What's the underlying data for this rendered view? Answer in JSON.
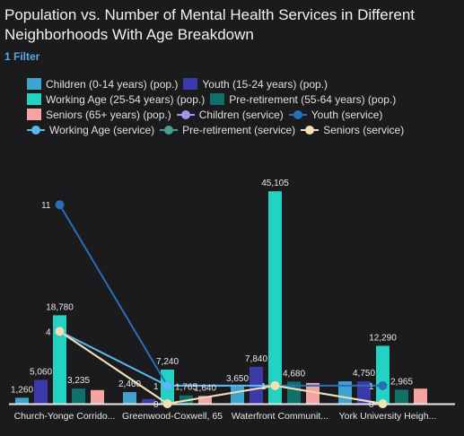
{
  "title": "Population vs. Number of Mental Health Services in Different Neighborhoods With Age Breakdown",
  "filter_label": "1 Filter",
  "legend": [
    [
      {
        "name": "Children (0-14 years) (pop.)",
        "kind": "bar",
        "color": "#3fa3cf"
      },
      {
        "name": "Youth (15-24 years) (pop.)",
        "kind": "bar",
        "color": "#3a3aa8"
      }
    ],
    [
      {
        "name": "Working Age (25-54 years) (pop.)",
        "kind": "bar",
        "color": "#22d3c4"
      },
      {
        "name": "Pre-retirement (55-64 years) (pop.)",
        "kind": "bar",
        "color": "#0e7068"
      }
    ],
    [
      {
        "name": "Seniors (65+ years) (pop.)",
        "kind": "bar",
        "color": "#f5a3a3"
      },
      {
        "name": "Children (service)",
        "kind": "line",
        "color": "#9999ee"
      },
      {
        "name": "Youth (service)",
        "kind": "line",
        "color": "#2a6db8"
      }
    ],
    [
      {
        "name": "Working Age (service)",
        "kind": "line",
        "color": "#5bb8f0"
      },
      {
        "name": "Pre-retirement (service)",
        "kind": "line",
        "color": "#4a9e90"
      },
      {
        "name": "Seniors (service)",
        "kind": "line",
        "color": "#f5deb0"
      }
    ]
  ],
  "chart_data": {
    "type": "bar",
    "categories": [
      "Church-Yonge Corrido...",
      "Greenwood-Coxwell, 65",
      "Waterfront Communit...",
      "York University Heigh..."
    ],
    "ylim": [
      0,
      48000
    ],
    "series": [
      {
        "name": "Children (0-14 years) (pop.)",
        "color": "#3fa3cf",
        "values": [
          1260,
          2460,
          3650,
          4750
        ],
        "labels": [
          "1,260",
          "2,460",
          "3,650",
          ""
        ]
      },
      {
        "name": "Youth (15-24 years) (pop.)",
        "color": "#3a3aa8",
        "values": [
          5060,
          1000,
          7840,
          4750
        ],
        "labels": [
          "5,060",
          "",
          "7,840",
          "4,750"
        ]
      },
      {
        "name": "Working Age (25-54 years) (pop.)",
        "color": "#22d3c4",
        "values": [
          18780,
          7240,
          45105,
          12290
        ],
        "labels": [
          "18,780",
          "7,240",
          "45,105",
          "12,290"
        ]
      },
      {
        "name": "Pre-retirement (55-64 years) (pop.)",
        "color": "#0e7068",
        "values": [
          3235,
          1765,
          4680,
          2965
        ],
        "labels": [
          "3,235",
          "1,765",
          "4,680",
          "2,965"
        ]
      },
      {
        "name": "Seniors (65+ years) (pop.)",
        "color": "#f5a3a3",
        "values": [
          2900,
          1640,
          4400,
          3200
        ],
        "labels": [
          "",
          "1,640",
          "",
          ""
        ]
      }
    ],
    "service_ylim": [
      0,
      12.5
    ],
    "service_series": [
      {
        "name": "Children (service)",
        "color": "#9999ee",
        "values": [
          4,
          0,
          1,
          0
        ],
        "labels": [
          "",
          "",
          "",
          ""
        ]
      },
      {
        "name": "Youth (service)",
        "color": "#2a6db8",
        "values": [
          11,
          1,
          1,
          1
        ],
        "labels": [
          "11",
          "",
          "",
          "1"
        ]
      },
      {
        "name": "Working Age (service)",
        "color": "#5bb8f0",
        "values": [
          4,
          1,
          1,
          0
        ],
        "labels": [
          "",
          "1",
          "",
          ""
        ]
      },
      {
        "name": "Pre-retirement (service)",
        "color": "#4a9e90",
        "values": [
          4,
          0,
          1,
          0
        ],
        "labels": [
          "",
          "0",
          "",
          "0"
        ]
      },
      {
        "name": "Seniors (service)",
        "color": "#f5deb0",
        "values": [
          4,
          0,
          1,
          0
        ],
        "labels": [
          "4",
          "",
          "1",
          ""
        ]
      }
    ]
  }
}
